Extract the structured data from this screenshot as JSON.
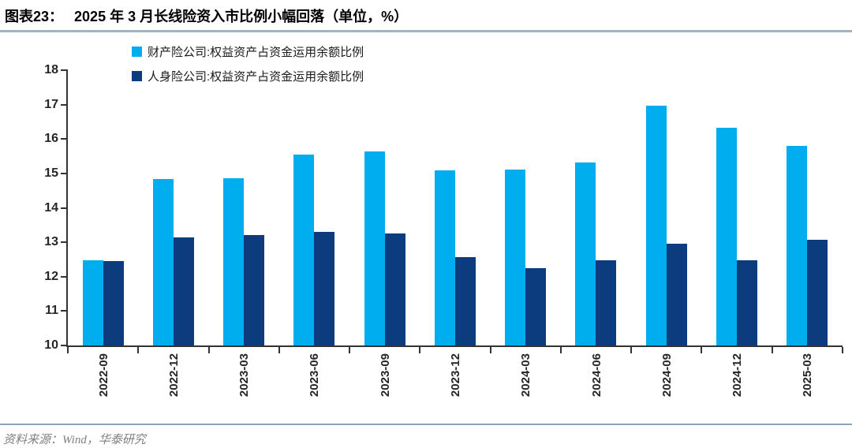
{
  "header": {
    "label": "图表23：",
    "title": "2025 年 3 月长线险资入市比例小幅回落（单位，%）"
  },
  "footer": {
    "source": "资料来源：Wind，华泰研究"
  },
  "colors": {
    "pc_bar": "#00AEEF",
    "life_bar": "#0C3C7D",
    "title_rule": "#9FB3C6",
    "footer_rule": "#8CA3B8",
    "axis": "#333333"
  },
  "chart_data": {
    "type": "bar",
    "title": "2025 年 3 月长线险资入市比例小幅回落",
    "unit": "%",
    "xlabel": "",
    "ylabel": "",
    "ylim": [
      10,
      18
    ],
    "yticks": [
      10,
      11,
      12,
      13,
      14,
      15,
      16,
      17,
      18
    ],
    "grid": false,
    "legend_position": "top-left",
    "categories": [
      "2022-09",
      "2022-12",
      "2023-03",
      "2023-06",
      "2023-09",
      "2023-12",
      "2024-03",
      "2024-06",
      "2024-09",
      "2024-12",
      "2025-03"
    ],
    "series": [
      {
        "name": "财产险公司:权益资产占资金运用余额比例",
        "color": "#00AEEF",
        "values": [
          12.47,
          14.83,
          14.87,
          15.55,
          15.63,
          15.1,
          15.12,
          15.32,
          16.97,
          16.33,
          15.8
        ]
      },
      {
        "name": "人身险公司:权益资产占资金运用余额比例",
        "color": "#0C3C7D",
        "values": [
          12.46,
          13.15,
          13.2,
          13.3,
          13.25,
          12.57,
          12.25,
          12.47,
          12.95,
          12.47,
          13.07
        ]
      }
    ]
  }
}
